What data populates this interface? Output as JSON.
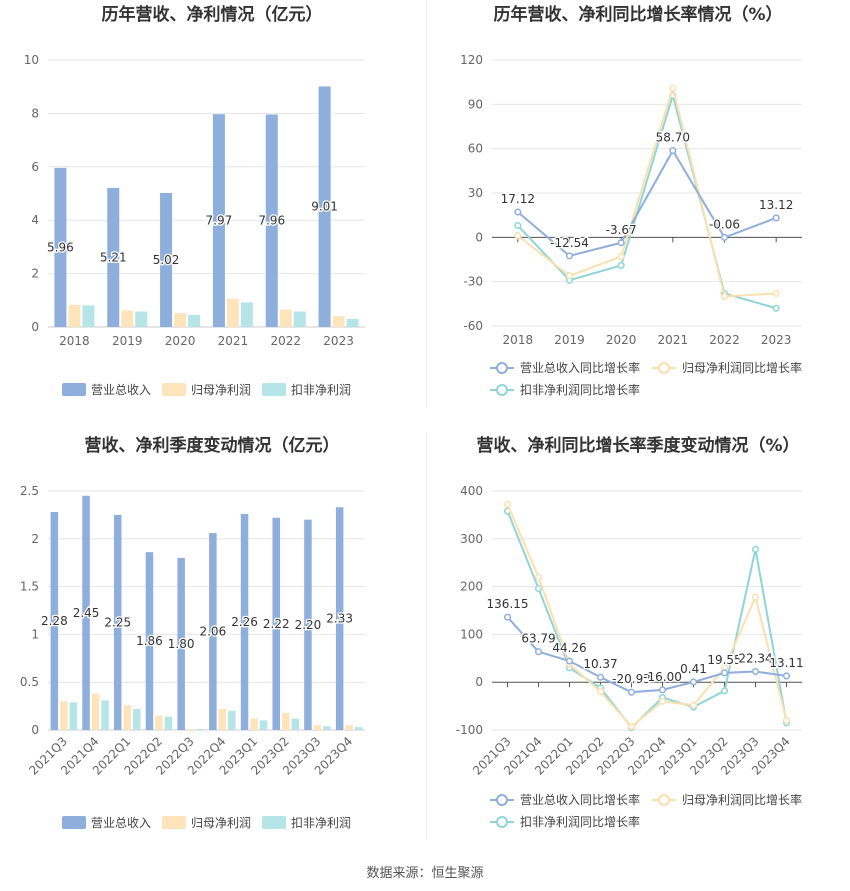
{
  "source": "数据来源：恒生聚源",
  "colors": {
    "revenue": "#8eaedc",
    "net_profit": "#fde4bb",
    "deducted_profit": "#b5e5e6",
    "revenue_line": "#8eaedc",
    "net_line": "#fcdfae",
    "deducted_line": "#8ed5d8",
    "grid": "#e6e6e6",
    "axis_text": "#666666",
    "title": "#333333"
  },
  "chart_data": [
    {
      "id": "annual-bar",
      "type": "bar",
      "title": "历年营收、净利情况（亿元）",
      "categories": [
        "2018",
        "2019",
        "2020",
        "2021",
        "2022",
        "2023"
      ],
      "series": [
        {
          "name": "营业总收入",
          "values": [
            5.96,
            5.21,
            5.02,
            7.97,
            7.96,
            9.01
          ],
          "labels": [
            "5.96",
            "5.21",
            "5.02",
            "7.97",
            "7.96",
            "9.01"
          ]
        },
        {
          "name": "归母净利润",
          "values": [
            0.83,
            0.62,
            0.52,
            1.06,
            0.65,
            0.4
          ]
        },
        {
          "name": "扣非净利润",
          "values": [
            0.81,
            0.58,
            0.45,
            0.92,
            0.58,
            0.3
          ]
        }
      ],
      "yticks": [
        "0",
        "2",
        "4",
        "6",
        "8",
        "10"
      ],
      "ylim": [
        0,
        10
      ],
      "grid": true,
      "legend": "bottom-center"
    },
    {
      "id": "annual-line",
      "type": "line",
      "title": "历年营收、净利同比增长率情况（%）",
      "categories": [
        "2018",
        "2019",
        "2020",
        "2021",
        "2022",
        "2023"
      ],
      "series": [
        {
          "name": "营业总收入同比增长率",
          "values": [
            17.12,
            -12.54,
            -3.67,
            58.7,
            -0.06,
            13.12
          ],
          "labels": [
            "17.12",
            "-12.54",
            "-3.67",
            "58.70",
            "-0.06",
            "13.12"
          ]
        },
        {
          "name": "归母净利润同比增长率",
          "values": [
            1,
            -26,
            -13,
            101,
            -40,
            -38
          ]
        },
        {
          "name": "扣非净利润同比增长率",
          "values": [
            8,
            -29,
            -19,
            96,
            -38,
            -48
          ]
        }
      ],
      "yticks": [
        "120",
        "90",
        "60",
        "30",
        "0",
        "-30",
        "-60"
      ],
      "ylim": [
        -60,
        120
      ],
      "grid": true,
      "legend": "bottom-center"
    },
    {
      "id": "quarter-bar",
      "type": "bar",
      "title": "营收、净利季度变动情况（亿元）",
      "categories": [
        "2021Q3",
        "2021Q4",
        "2022Q1",
        "2022Q2",
        "2022Q3",
        "2022Q4",
        "2023Q1",
        "2023Q2",
        "2023Q3",
        "2023Q4"
      ],
      "series": [
        {
          "name": "营业总收入",
          "values": [
            2.28,
            2.45,
            2.25,
            1.86,
            1.8,
            2.06,
            2.26,
            2.22,
            2.2,
            2.33
          ],
          "labels": [
            "2.28",
            "2.45",
            "2.25",
            "1.86",
            "1.80",
            "2.06",
            "2.26",
            "2.22",
            "2.20",
            "2.33"
          ]
        },
        {
          "name": "归母净利润",
          "values": [
            0.3,
            0.38,
            0.26,
            0.15,
            0.01,
            0.22,
            0.12,
            0.18,
            0.05,
            0.05
          ]
        },
        {
          "name": "扣非净利润",
          "values": [
            0.29,
            0.31,
            0.22,
            0.14,
            0.01,
            0.2,
            0.1,
            0.12,
            0.04,
            0.03
          ]
        }
      ],
      "yticks": [
        "0",
        "0.5",
        "1",
        "1.5",
        "2",
        "2.5"
      ],
      "ylim": [
        0,
        2.5
      ],
      "grid": true,
      "legend": "bottom-center"
    },
    {
      "id": "quarter-line",
      "type": "line",
      "title": "营收、净利同比增长率季度变动情况（%）",
      "categories": [
        "2021Q3",
        "2021Q4",
        "2022Q1",
        "2022Q2",
        "2022Q3",
        "2022Q4",
        "2023Q1",
        "2023Q2",
        "2023Q3",
        "2023Q4"
      ],
      "series": [
        {
          "name": "营业总收入同比增长率",
          "values": [
            136.15,
            63.79,
            44.26,
            10.37,
            -20.93,
            -16.0,
            0.41,
            19.55,
            22.34,
            13.11
          ],
          "labels": [
            "136.15",
            "63.79",
            "44.26",
            "10.37",
            "-20.93",
            "-16.00",
            "0.41",
            "19.55",
            "22.34",
            "13.11"
          ]
        },
        {
          "name": "归母净利润同比增长率",
          "values": [
            372,
            220,
            38,
            -20,
            -93,
            -40,
            -48,
            30,
            178,
            -80
          ]
        },
        {
          "name": "扣非净利润同比增长率",
          "values": [
            358,
            196,
            30,
            -12,
            -95,
            -32,
            -52,
            -18,
            278,
            -85
          ]
        }
      ],
      "yticks": [
        "400",
        "300",
        "200",
        "100",
        "0",
        "-100"
      ],
      "ylim": [
        -100,
        400
      ],
      "grid": true,
      "legend": "bottom-center"
    }
  ]
}
